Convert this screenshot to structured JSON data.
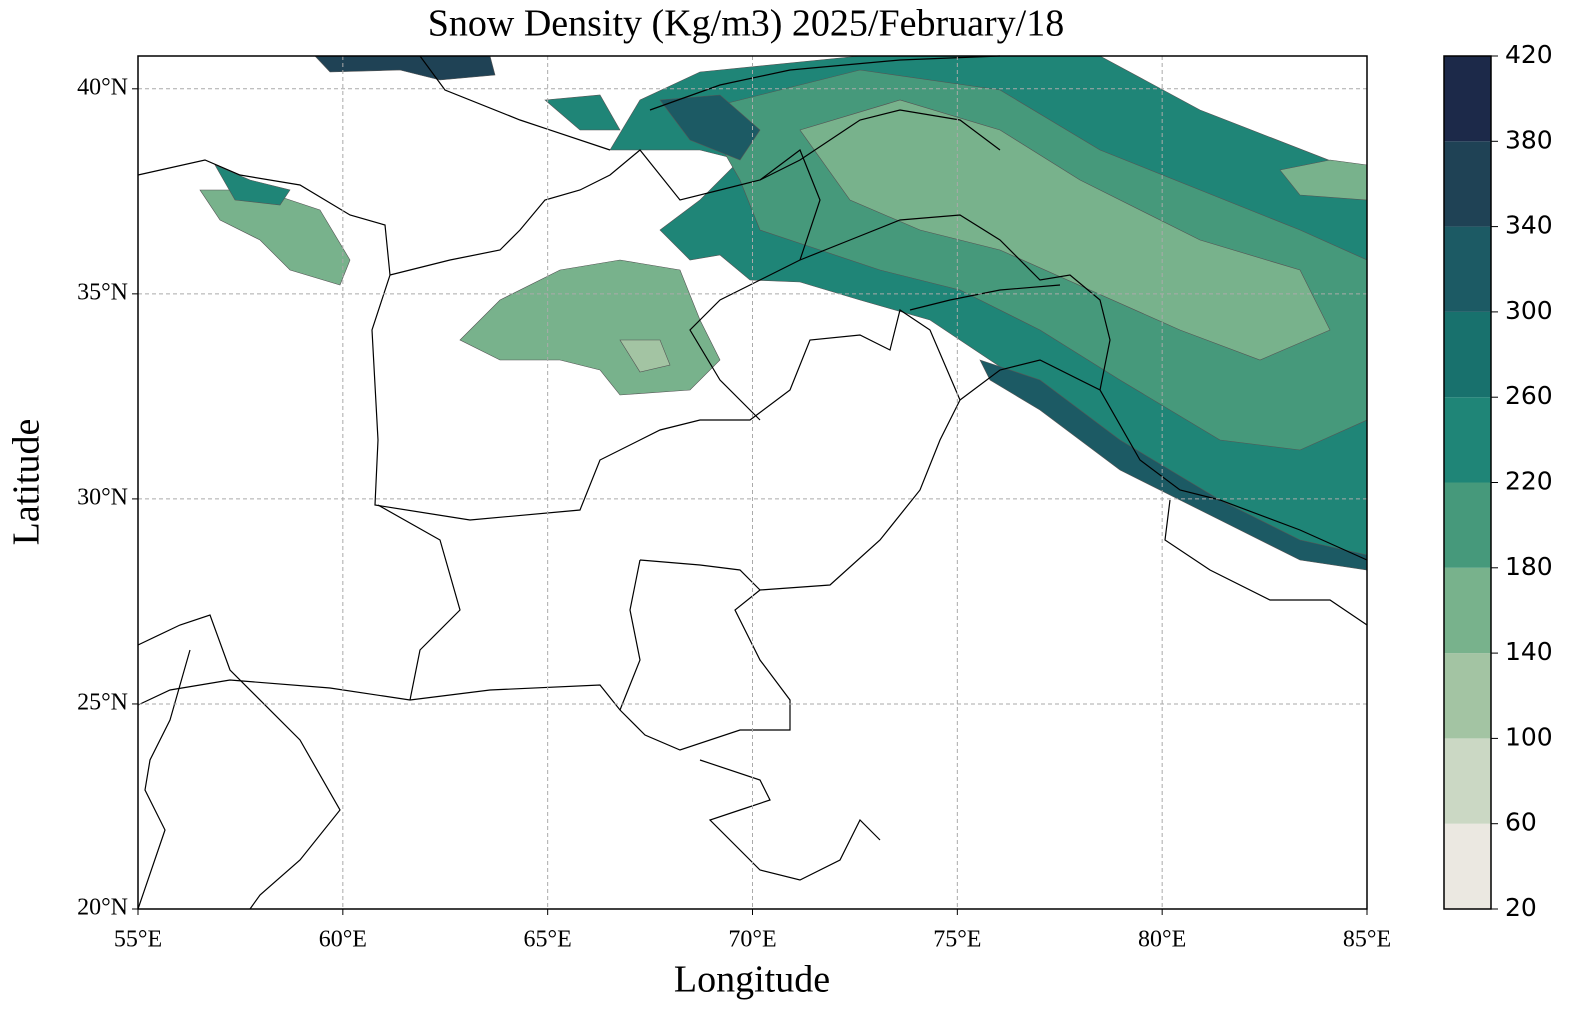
{
  "chart_data": {
    "type": "map",
    "title": "Snow Density (Kg/m3) 2025/February/18",
    "xlabel": "Longitude",
    "ylabel": "Latitude",
    "xlim": [
      55,
      85
    ],
    "ylim": [
      20,
      40.8
    ],
    "xticks": [
      {
        "value": 55,
        "label": "55°E"
      },
      {
        "value": 60,
        "label": "60°E"
      },
      {
        "value": 65,
        "label": "65°E"
      },
      {
        "value": 70,
        "label": "70°E"
      },
      {
        "value": 75,
        "label": "75°E"
      },
      {
        "value": 80,
        "label": "80°E"
      },
      {
        "value": 85,
        "label": "85°E"
      }
    ],
    "yticks": [
      {
        "value": 20,
        "label": "20°N"
      },
      {
        "value": 25,
        "label": "25°N"
      },
      {
        "value": 30,
        "label": "30°N"
      },
      {
        "value": 35,
        "label": "35°N"
      },
      {
        "value": 40,
        "label": "40°N"
      }
    ],
    "grid": true,
    "colorbar": {
      "lim": [
        20,
        420
      ],
      "ticks": [
        20,
        60,
        100,
        140,
        180,
        220,
        260,
        300,
        340,
        380,
        420
      ],
      "colors": [
        "#ebe8e1",
        "#cbd8c4",
        "#a3c4a3",
        "#78b28c",
        "#46997b",
        "#1f8577",
        "#18716d",
        "#1c5a64",
        "#1f4255",
        "#1c2949"
      ]
    }
  }
}
